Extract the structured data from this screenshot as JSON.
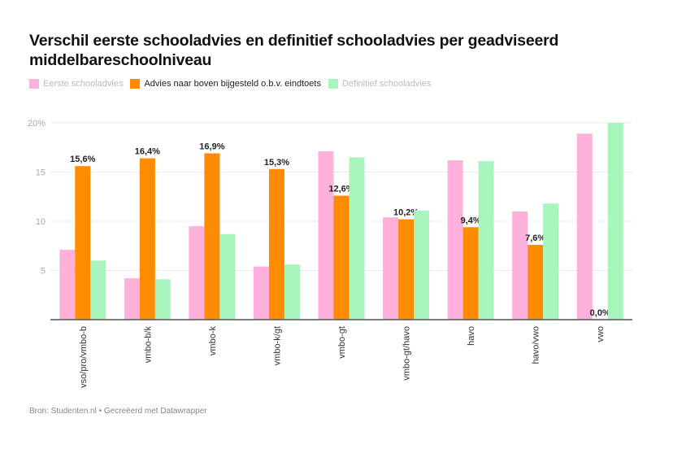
{
  "chart_data": {
    "type": "bar",
    "title": "Verschil eerste schooladvies en definitief schooladvies per geadviseerd middelbareschoolniveau",
    "xlabel": "",
    "ylabel": "",
    "ylim": [
      0,
      20
    ],
    "yticks": [
      5,
      10,
      15,
      20
    ],
    "ytick_labels": [
      "5",
      "10",
      "15",
      "20%"
    ],
    "grid": true,
    "legend_position": "top-left",
    "categories": [
      "vso/pro/vmbo-b",
      "vmbo-b/k",
      "vmbo-k",
      "vmbo-k/gt",
      "vmbo-gt",
      "vmbo-gt/havo",
      "havo",
      "havo/vwo",
      "vwo"
    ],
    "series": [
      {
        "name": "Eerste schooladvies",
        "color": "#ffb1dc",
        "values": [
          7.1,
          4.2,
          9.5,
          5.4,
          17.1,
          10.4,
          16.2,
          11.0,
          18.9
        ]
      },
      {
        "name": "Advies naar boven bijgesteld o.b.v. eindtoets",
        "color": "#ff8c00",
        "values": [
          15.6,
          16.4,
          16.9,
          15.3,
          12.6,
          10.2,
          9.4,
          7.6,
          0.0
        ],
        "labels": [
          "15,6%",
          "16,4%",
          "16,9%",
          "15,3%",
          "12,6%",
          "10,2%",
          "9,4%",
          "7,6%",
          "0,0%"
        ]
      },
      {
        "name": "Definitief schooladvies",
        "color": "#a8f5bd",
        "values": [
          6.0,
          4.1,
          8.7,
          5.6,
          16.5,
          11.1,
          16.1,
          11.8,
          20.0
        ]
      }
    ],
    "source": "Bron: Studenten.nl • Gecreëerd met Datawrapper"
  }
}
